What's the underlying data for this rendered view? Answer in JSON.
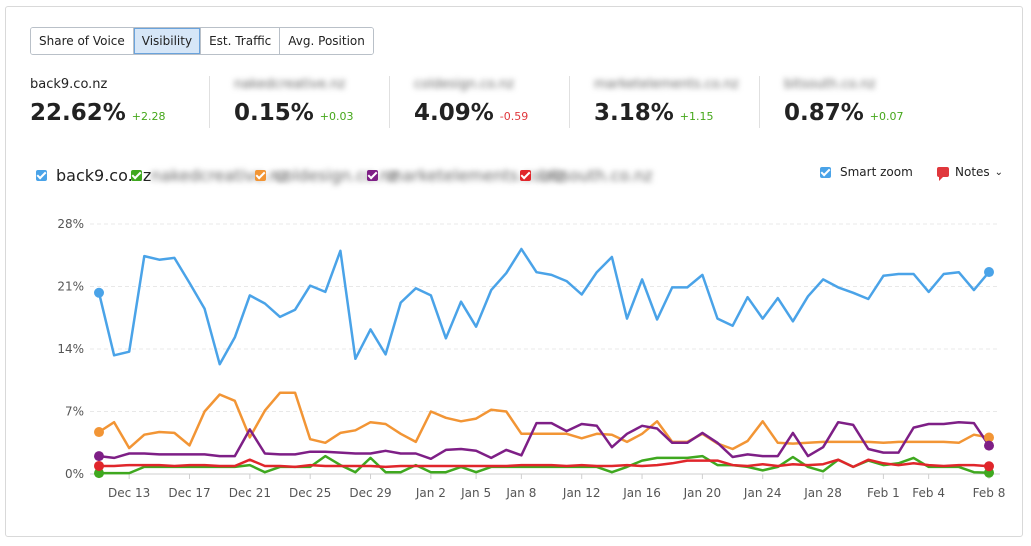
{
  "tabs": [
    {
      "label": "Share of Voice",
      "active": false
    },
    {
      "label": "Visibility",
      "active": true
    },
    {
      "label": "Est. Traffic",
      "active": false
    },
    {
      "label": "Avg. Position",
      "active": false
    }
  ],
  "stats": [
    {
      "domain": "back9.co.nz",
      "blurred": false,
      "value": "22.62%",
      "delta": "+2.28",
      "trend": "pos"
    },
    {
      "domain": "nakedcreative.nz",
      "blurred": true,
      "value": "0.15%",
      "delta": "+0.03",
      "trend": "pos"
    },
    {
      "domain": "coldesign.co.nz",
      "blurred": true,
      "value": "4.09%",
      "delta": "-0.59",
      "trend": "neg"
    },
    {
      "domain": "marketelements.co.nz",
      "blurred": true,
      "value": "3.18%",
      "delta": "+1.15",
      "trend": "pos"
    },
    {
      "domain": "bitsouth.co.nz",
      "blurred": true,
      "value": "0.87%",
      "delta": "+0.07",
      "trend": "pos"
    }
  ],
  "legend": [
    {
      "label": "back9.co.nz",
      "color": "#4aa3e8",
      "blurred": false
    },
    {
      "label": "nakedcreative.nz",
      "color": "#3fa81f",
      "blurred": true
    },
    {
      "label": "coldesign.co.nz",
      "color": "#f29535",
      "blurred": true
    },
    {
      "label": "marketelements.co.nz",
      "color": "#7e1f86",
      "blurred": true
    },
    {
      "label": "bitsouth.co.nz",
      "color": "#e0262b",
      "blurred": true
    }
  ],
  "controls": {
    "smart_zoom_label": "Smart zoom",
    "notes_label": "Notes",
    "chevron_icon": "chevron-down-icon",
    "notes_icon": "speech-bubble-icon"
  },
  "chart_data": {
    "type": "line",
    "ylim": [
      0,
      28
    ],
    "yticks": [
      "0%",
      "7%",
      "14%",
      "21%",
      "28%"
    ],
    "ytick_values": [
      0,
      7,
      14,
      21,
      28
    ],
    "grid": true,
    "xticks": [
      "Dec 13",
      "Dec 17",
      "Dec 21",
      "Dec 25",
      "Dec 29",
      "Jan 2",
      "Jan 5",
      "Jan 8",
      "Jan 12",
      "Jan 16",
      "Jan 20",
      "Jan 24",
      "Jan 28",
      "Feb 1",
      "Feb 4",
      "Feb 8"
    ],
    "xtick_days": [
      3,
      7,
      11,
      15,
      19,
      23,
      26,
      29,
      33,
      37,
      41,
      45,
      49,
      53,
      56,
      60
    ],
    "x_start": "Dec 10",
    "x_end": "Feb 8",
    "series": [
      {
        "name": "back9.co.nz",
        "color": "#4aa3e8",
        "values": [
          20.3,
          13.3,
          13.7,
          24.4,
          24.0,
          24.2,
          21.4,
          18.5,
          12.3,
          15.3,
          20.0,
          19.1,
          17.6,
          18.4,
          21.1,
          20.4,
          25.0,
          12.9,
          16.2,
          13.4,
          19.2,
          20.8,
          20.0,
          15.2,
          19.3,
          16.5,
          20.6,
          22.5,
          25.2,
          22.6,
          22.3,
          21.6,
          20.1,
          22.6,
          24.3,
          17.4,
          21.8,
          17.3,
          20.9,
          20.9,
          22.3,
          17.4,
          16.6,
          19.8,
          17.4,
          19.7,
          17.1,
          19.9,
          21.8,
          20.9,
          20.3,
          19.6,
          22.2,
          22.4,
          22.4,
          20.4,
          22.4,
          22.6,
          20.6,
          22.62
        ]
      },
      {
        "name": "nakedcreative.nz",
        "color": "#3fa81f",
        "values": [
          0.1,
          0.1,
          0.1,
          0.8,
          0.8,
          0.8,
          0.8,
          0.8,
          0.8,
          0.8,
          1.0,
          0.2,
          0.8,
          0.8,
          0.8,
          2.0,
          1.0,
          0.2,
          1.8,
          0.2,
          0.2,
          1.0,
          0.2,
          0.2,
          0.8,
          0.2,
          0.8,
          0.8,
          0.8,
          0.8,
          0.8,
          0.8,
          0.8,
          0.8,
          0.2,
          0.8,
          1.5,
          1.8,
          1.8,
          1.8,
          2.0,
          1.0,
          1.0,
          0.8,
          0.4,
          0.8,
          1.9,
          0.8,
          0.3,
          1.6,
          0.8,
          1.5,
          1.0,
          1.2,
          1.8,
          0.8,
          0.8,
          0.8,
          0.2,
          0.15
        ]
      },
      {
        "name": "coldesign.co.nz",
        "color": "#f29535",
        "values": [
          4.7,
          5.8,
          2.9,
          4.4,
          4.7,
          4.6,
          3.2,
          7.0,
          8.9,
          8.2,
          4.1,
          7.1,
          9.1,
          9.1,
          3.9,
          3.5,
          4.6,
          4.9,
          5.8,
          5.6,
          4.5,
          3.6,
          7.0,
          6.3,
          5.9,
          6.2,
          7.2,
          7.0,
          4.5,
          4.5,
          4.5,
          4.5,
          4.0,
          4.5,
          4.4,
          3.6,
          4.5,
          5.9,
          3.6,
          3.6,
          4.5,
          3.4,
          2.8,
          3.7,
          5.9,
          3.5,
          3.4,
          3.5,
          3.6,
          3.6,
          3.6,
          3.6,
          3.5,
          3.6,
          3.6,
          3.6,
          3.6,
          3.5,
          4.4,
          4.09
        ]
      },
      {
        "name": "marketelements.co.nz",
        "color": "#7e1f86",
        "values": [
          2.0,
          1.8,
          2.3,
          2.3,
          2.2,
          2.2,
          2.2,
          2.2,
          2.0,
          2.0,
          5.0,
          2.3,
          2.2,
          2.2,
          2.5,
          2.5,
          2.4,
          2.3,
          2.3,
          2.6,
          2.3,
          2.3,
          1.7,
          2.7,
          2.8,
          2.6,
          1.8,
          2.7,
          2.1,
          5.7,
          5.7,
          4.8,
          5.6,
          5.4,
          3.0,
          4.5,
          5.4,
          5.1,
          3.5,
          3.5,
          4.6,
          3.5,
          1.9,
          2.2,
          2.0,
          2.0,
          4.6,
          2.0,
          3.0,
          5.8,
          5.5,
          2.8,
          2.4,
          2.4,
          5.2,
          5.6,
          5.6,
          5.8,
          5.7,
          3.18
        ]
      },
      {
        "name": "bitsouth.co.nz",
        "color": "#e0262b",
        "values": [
          0.9,
          0.9,
          1.0,
          1.0,
          1.0,
          0.9,
          1.0,
          1.0,
          0.9,
          0.9,
          1.6,
          0.9,
          0.9,
          0.8,
          1.0,
          0.9,
          0.9,
          0.9,
          0.9,
          0.8,
          0.9,
          0.9,
          0.9,
          0.9,
          0.9,
          0.9,
          0.9,
          0.9,
          1.0,
          1.0,
          1.0,
          0.9,
          1.0,
          0.9,
          0.9,
          1.0,
          0.9,
          1.0,
          1.2,
          1.5,
          1.5,
          1.5,
          1.0,
          0.9,
          1.1,
          0.9,
          1.1,
          1.0,
          1.1,
          1.6,
          0.8,
          1.6,
          1.2,
          1.0,
          1.2,
          1.0,
          0.9,
          1.0,
          1.0,
          0.87
        ]
      }
    ]
  }
}
